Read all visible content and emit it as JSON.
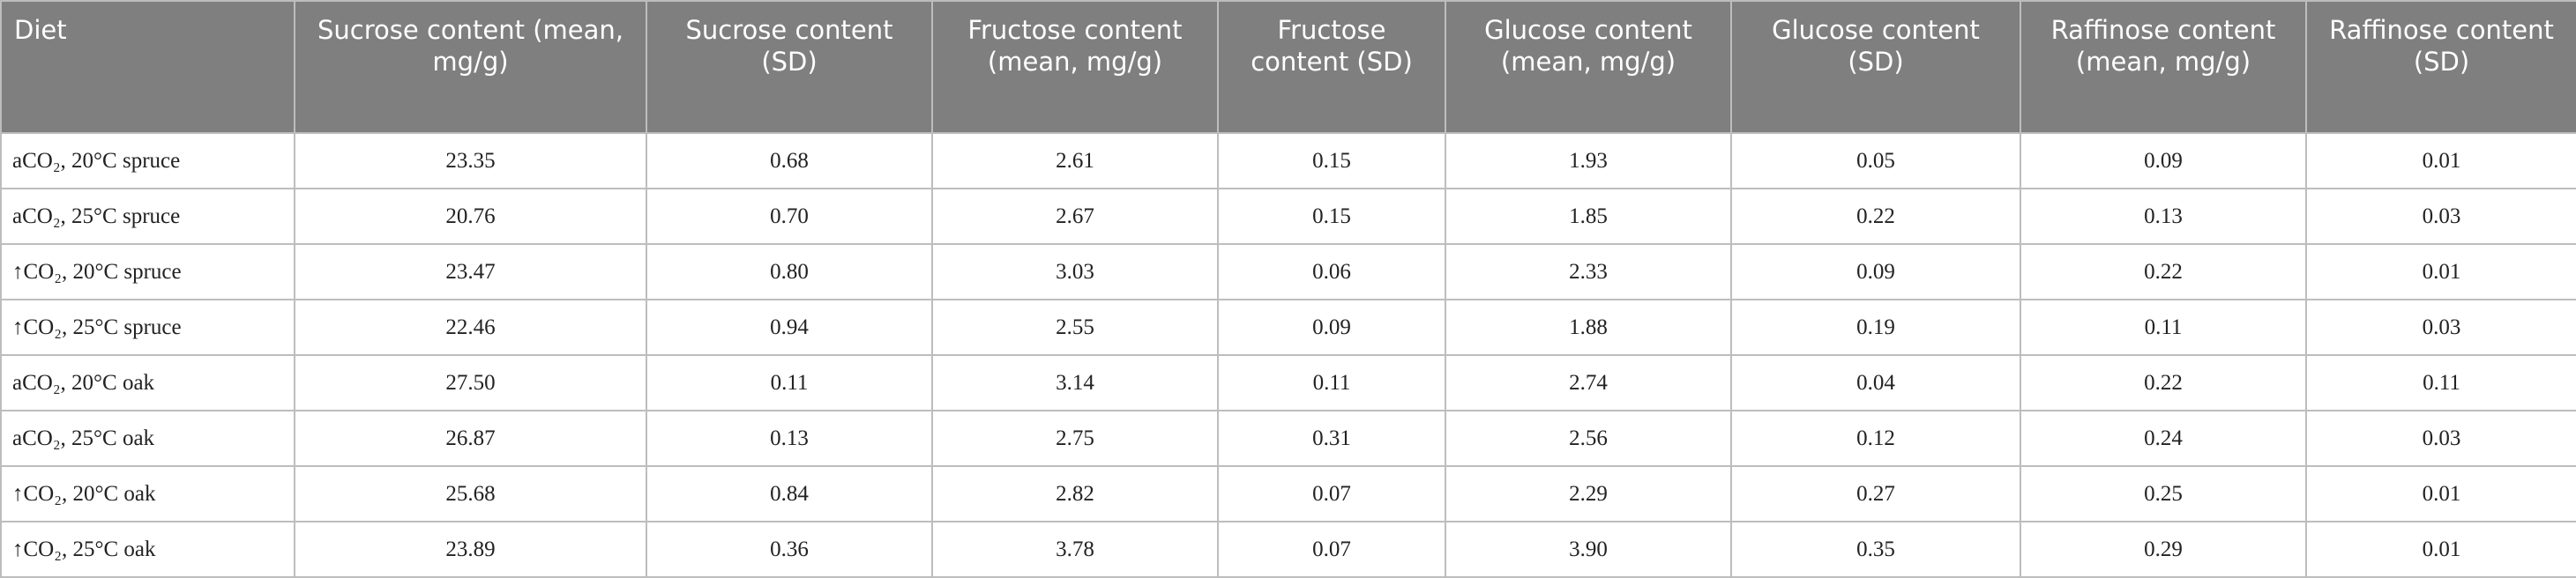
{
  "table": {
    "header": [
      "Diet",
      "Sucrose content (mean, mg/g)",
      "Sucrose content (SD)",
      "Fructose content (mean, mg/g)",
      "Fructose content (SD)",
      "Glucose content (mean, mg/g)",
      "Glucose content (SD)",
      "Raffinose content (mean, mg/g)",
      "Raffinose content (SD)"
    ],
    "rows": [
      [
        "aCO₂, 20°C spruce",
        "23.35",
        "0.68",
        "2.61",
        "0.15",
        "1.93",
        "0.05",
        "0.09",
        "0.01"
      ],
      [
        "aCO₂, 25°C spruce",
        "20.76",
        "0.70",
        "2.67",
        "0.15",
        "1.85",
        "0.22",
        "0.13",
        "0.03"
      ],
      [
        "↑CO₂, 20°C spruce",
        "23.47",
        "0.80",
        "3.03",
        "0.06",
        "2.33",
        "0.09",
        "0.22",
        "0.01"
      ],
      [
        "↑CO₂, 25°C spruce",
        "22.46",
        "0.94",
        "2.55",
        "0.09",
        "1.88",
        "0.19",
        "0.11",
        "0.03"
      ],
      [
        "aCO₂, 20°C oak",
        "27.50",
        "0.11",
        "3.14",
        "0.11",
        "2.74",
        "0.04",
        "0.22",
        "0.11"
      ],
      [
        "aCO₂, 25°C oak",
        "26.87",
        "0.13",
        "2.75",
        "0.31",
        "2.56",
        "0.12",
        "0.24",
        "0.03"
      ],
      [
        "↑CO₂, 20°C oak",
        "25.68",
        "0.84",
        "2.82",
        "0.07",
        "2.29",
        "0.27",
        "0.25",
        "0.01"
      ],
      [
        "↑CO₂, 25°C oak",
        "23.89",
        "0.36",
        "3.78",
        "0.07",
        "3.90",
        "0.35",
        "0.29",
        "0.01"
      ]
    ]
  }
}
